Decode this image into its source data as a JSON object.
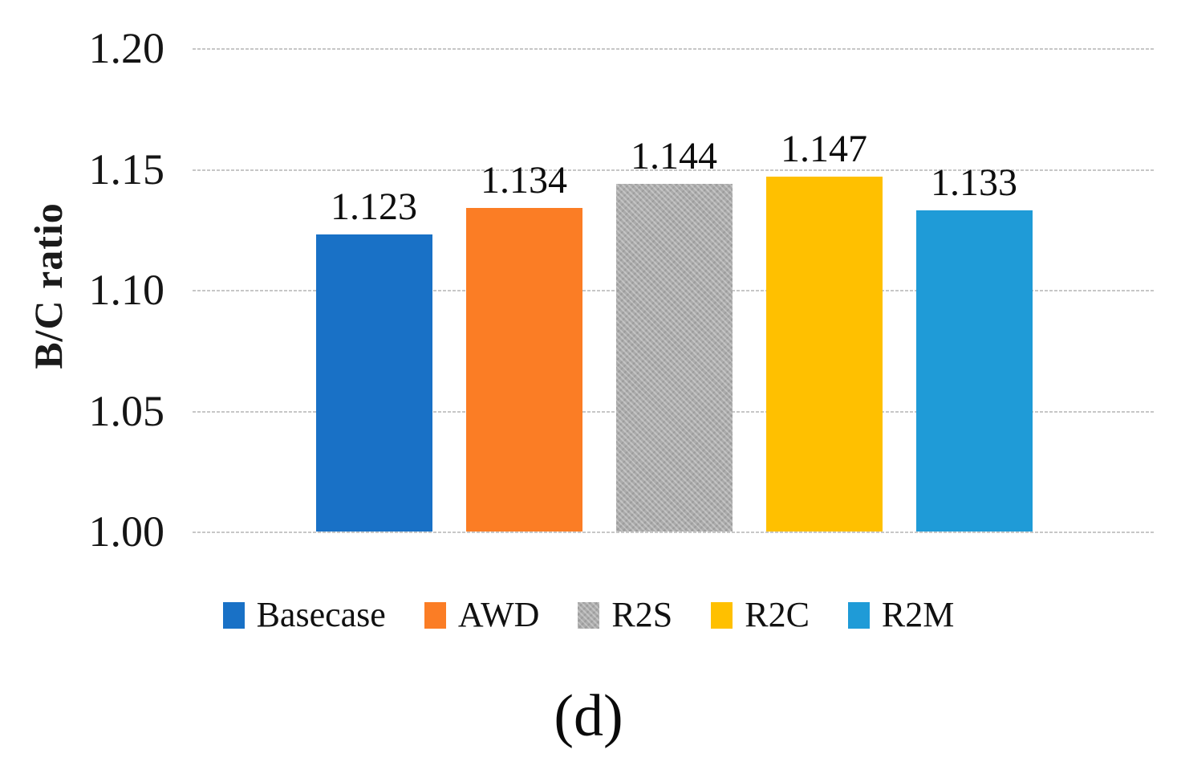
{
  "figure": {
    "caption": "(d)"
  },
  "chart_data": {
    "type": "bar",
    "title": "",
    "xlabel": "",
    "ylabel": "B/C ratio",
    "ylim": [
      1.0,
      1.2
    ],
    "grid": true,
    "gridline_color": "#c7c7c7",
    "legend_position": "bottom",
    "yticks": [
      {
        "value": 1.2,
        "label": "1.20"
      },
      {
        "value": 1.15,
        "label": "1.15"
      },
      {
        "value": 1.1,
        "label": "1.10"
      },
      {
        "value": 1.05,
        "label": "1.05"
      },
      {
        "value": 1.0,
        "label": "1.00"
      }
    ],
    "categories": [
      "Basecase",
      "AWD",
      "R2S",
      "R2C",
      "R2M"
    ],
    "values": [
      1.123,
      1.134,
      1.144,
      1.147,
      1.133
    ],
    "value_labels": [
      "1.123",
      "1.134",
      "1.144",
      "1.147",
      "1.133"
    ],
    "colors": [
      "#1971c6",
      "#fb7d25",
      "#a9a9a9",
      "#ffc000",
      "#1f9bd7"
    ],
    "patterned": [
      false,
      false,
      true,
      false,
      false
    ]
  }
}
